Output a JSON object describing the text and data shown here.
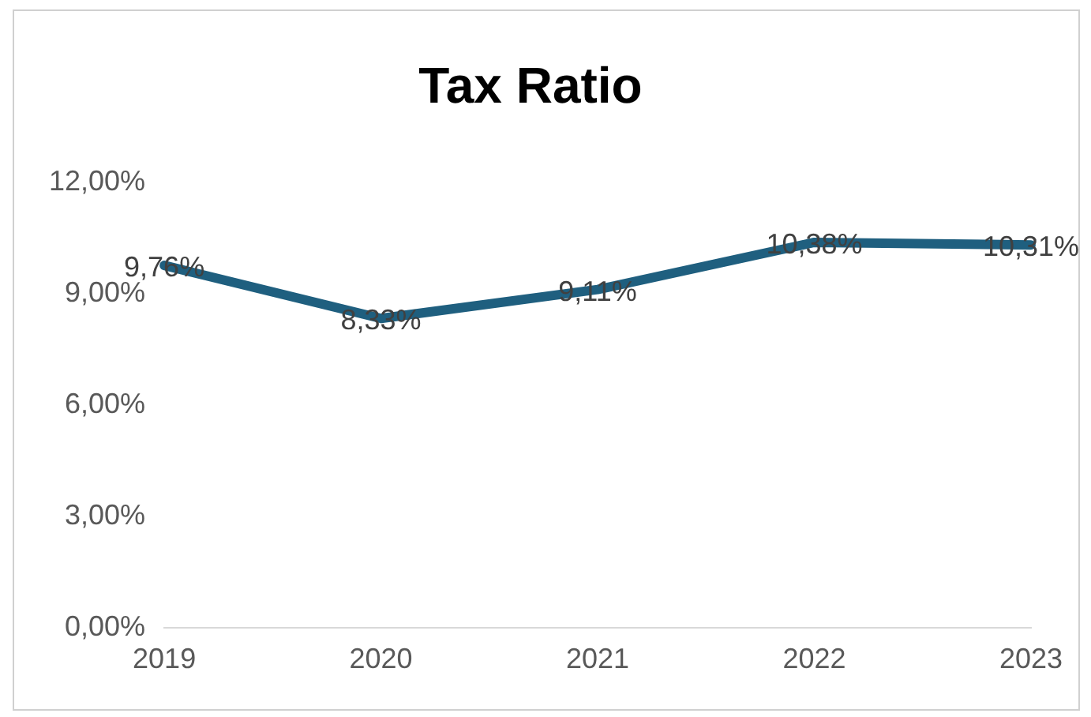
{
  "chart_data": {
    "type": "line",
    "title": "Tax Ratio",
    "categories": [
      "2019",
      "2020",
      "2021",
      "2022",
      "2023"
    ],
    "values": [
      9.76,
      8.33,
      9.11,
      10.38,
      10.31
    ],
    "value_labels": [
      "9,76%",
      "8,33%",
      "9,11%",
      "10,38%",
      "10,31%"
    ],
    "color": "#1f5f7f",
    "marker": "none",
    "grid": false,
    "legend": false,
    "ylim": [
      0,
      12
    ],
    "yticks": [
      {
        "value": 0,
        "label": "0,00%"
      },
      {
        "value": 3,
        "label": "3,00%"
      },
      {
        "value": 6,
        "label": "6,00%"
      },
      {
        "value": 9,
        "label": "9,00%"
      },
      {
        "value": 12,
        "label": "12,00%"
      }
    ]
  }
}
